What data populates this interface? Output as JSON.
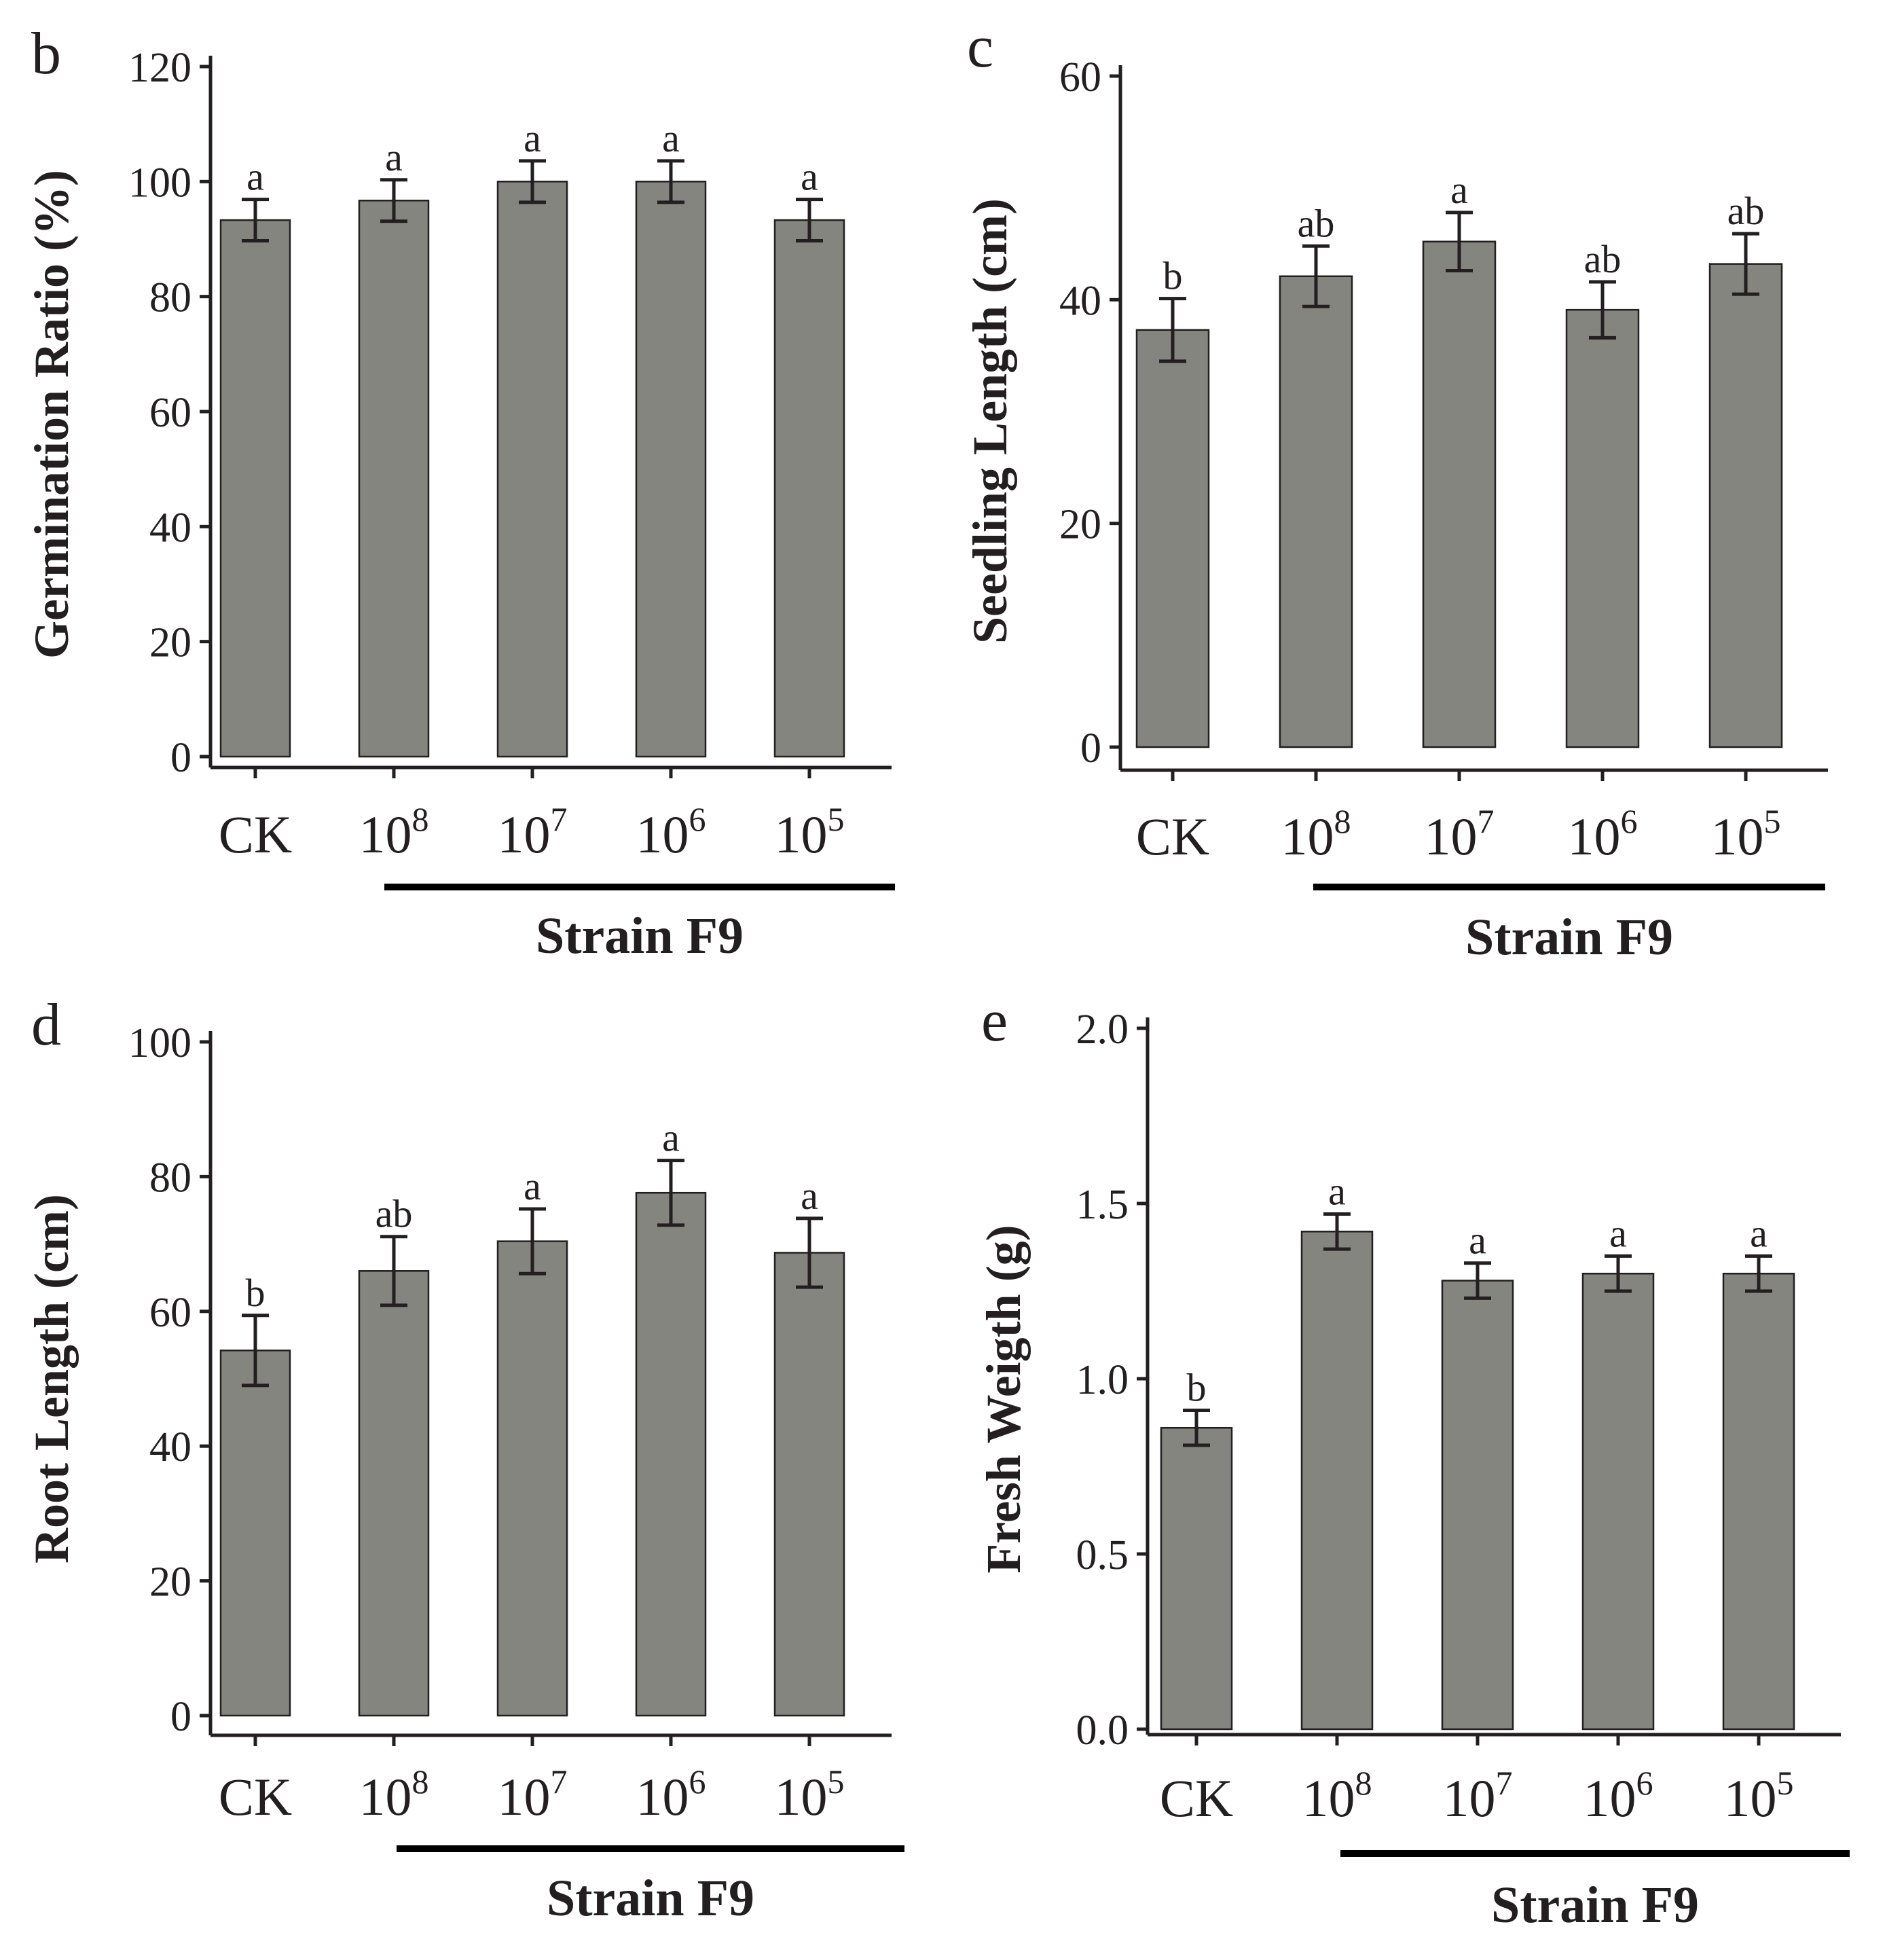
{
  "colors": {
    "bar_fill": "#858580",
    "ink": "#231f20"
  },
  "chart_data": [
    {
      "type": "bar",
      "panel": "b",
      "ylabel": "Germination Ratio (%)",
      "ylim": [
        0,
        120
      ],
      "yticks": [
        "0",
        "20",
        "40",
        "60",
        "80",
        "100",
        "120"
      ],
      "categories": [
        {
          "base": "CK",
          "sup": ""
        },
        {
          "base": "10",
          "sup": "8"
        },
        {
          "base": "10",
          "sup": "7"
        },
        {
          "base": "10",
          "sup": "6"
        },
        {
          "base": "10",
          "sup": "5"
        }
      ],
      "group_label": "Strain F9",
      "values": [
        93.3,
        96.7,
        100,
        100,
        93.3
      ],
      "errors": [
        3.6,
        3.6,
        3.6,
        3.6,
        3.6
      ],
      "significance": [
        "a",
        "a",
        "a",
        "a",
        "a"
      ]
    },
    {
      "type": "bar",
      "panel": "c",
      "ylabel": "Seedling Length (cm)",
      "ylim": [
        0,
        60
      ],
      "yticks": [
        "0",
        "20",
        "40",
        "60"
      ],
      "categories": [
        {
          "base": "CK",
          "sup": ""
        },
        {
          "base": "10",
          "sup": "8"
        },
        {
          "base": "10",
          "sup": "7"
        },
        {
          "base": "10",
          "sup": "6"
        },
        {
          "base": "10",
          "sup": "5"
        }
      ],
      "group_label": "Strain F9",
      "values": [
        37.3,
        42.1,
        45.2,
        39.1,
        43.2
      ],
      "errors": [
        2.8,
        2.7,
        2.6,
        2.5,
        2.7
      ],
      "significance": [
        "b",
        "ab",
        "a",
        "ab",
        "ab"
      ]
    },
    {
      "type": "bar",
      "panel": "d",
      "ylabel": "Root Length (cm)",
      "ylim": [
        0,
        100
      ],
      "yticks": [
        "0",
        "20",
        "40",
        "60",
        "80",
        "100"
      ],
      "categories": [
        {
          "base": "CK",
          "sup": ""
        },
        {
          "base": "10",
          "sup": "8"
        },
        {
          "base": "10",
          "sup": "7"
        },
        {
          "base": "10",
          "sup": "6"
        },
        {
          "base": "10",
          "sup": "5"
        }
      ],
      "group_label": "Strain F9",
      "values": [
        54.2,
        66.0,
        70.4,
        77.6,
        68.7
      ],
      "errors": [
        5.2,
        5.1,
        4.8,
        4.8,
        5.1
      ],
      "significance": [
        "b",
        "ab",
        "a",
        "a",
        "a"
      ]
    },
    {
      "type": "bar",
      "panel": "e",
      "ylabel": "Fresh Weigth (g)",
      "ylim": [
        0,
        2.0
      ],
      "yticks": [
        "0.0",
        "0.5",
        "1.0",
        "1.5",
        "2.0"
      ],
      "categories": [
        {
          "base": "CK",
          "sup": ""
        },
        {
          "base": "10",
          "sup": "8"
        },
        {
          "base": "10",
          "sup": "7"
        },
        {
          "base": "10",
          "sup": "6"
        },
        {
          "base": "10",
          "sup": "5"
        }
      ],
      "group_label": "Strain F9",
      "values": [
        0.86,
        1.42,
        1.28,
        1.3,
        1.3
      ],
      "errors": [
        0.05,
        0.05,
        0.05,
        0.05,
        0.05
      ],
      "significance": [
        "b",
        "a",
        "a",
        "a",
        "a"
      ]
    }
  ]
}
